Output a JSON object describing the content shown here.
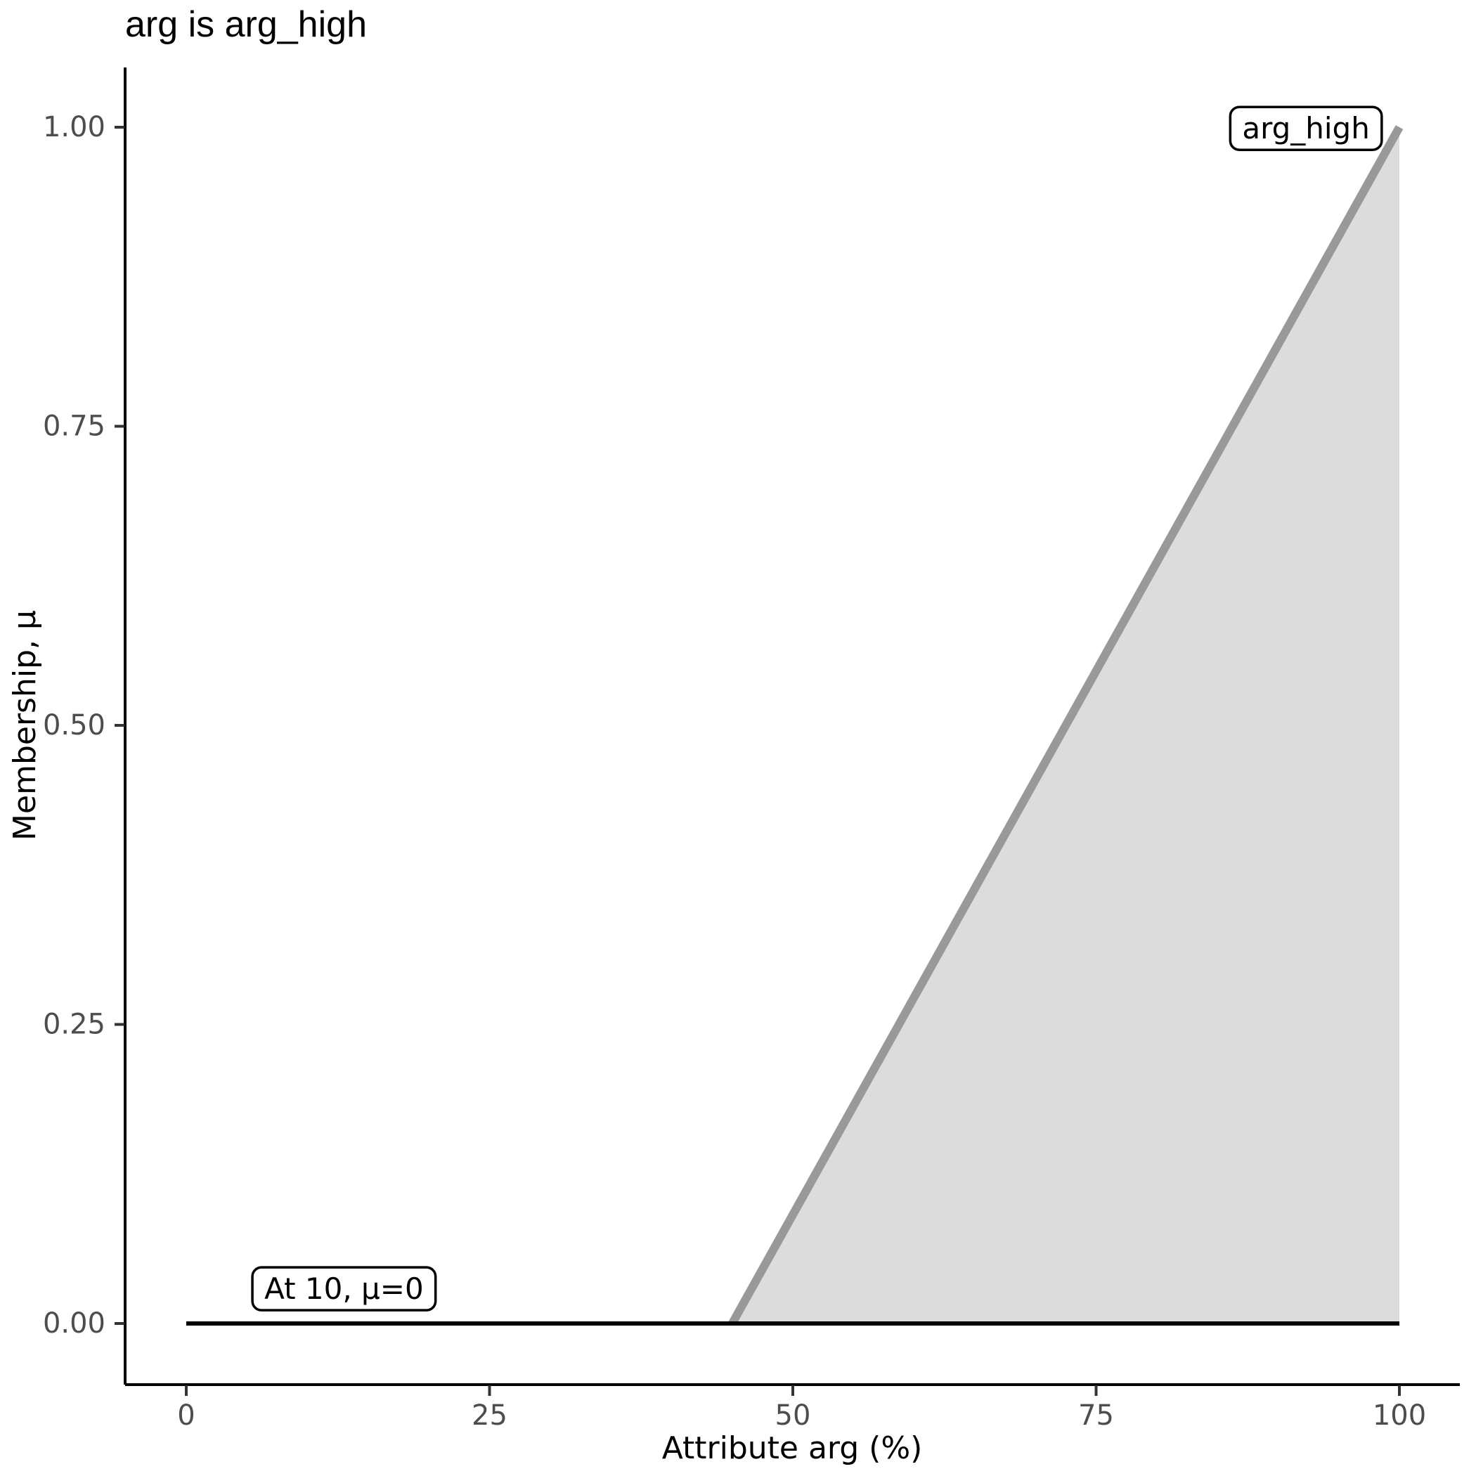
{
  "title": "arg is arg_high",
  "colors": {
    "membership_line": "#999999",
    "membership_fill": "#dcdcdc",
    "zero_line": "#000000",
    "tick_label": "#4d4d4d",
    "axis": "#000000",
    "background": "#ffffff"
  },
  "chart_data": {
    "type": "area",
    "title": "arg is arg_high",
    "xlabel": "Attribute arg (%)",
    "ylabel": "Membership, μ",
    "xlim": [
      0,
      100
    ],
    "ylim": [
      0,
      1
    ],
    "grid": false,
    "legend": false,
    "x_ticks": {
      "values": [
        0,
        25,
        50,
        75,
        100
      ],
      "labels": [
        "0",
        "25",
        "50",
        "75",
        "100"
      ]
    },
    "y_ticks": {
      "values": [
        0,
        0.25,
        0.5,
        0.75,
        1
      ],
      "labels": [
        "0.00",
        "0.25",
        "0.50",
        "0.75",
        "1.00"
      ]
    },
    "series": [
      {
        "name": "arg_high-membership-function",
        "points": [
          [
            45,
            0
          ],
          [
            100,
            1
          ]
        ],
        "style": "thick-gray",
        "fill_to_zero": true
      },
      {
        "name": "evaluated-membership-level",
        "points": [
          [
            0,
            0
          ],
          [
            100,
            0
          ]
        ],
        "style": "black",
        "fill_to_zero": false
      }
    ],
    "annotations": [
      {
        "text": "arg_high",
        "x": 92.3,
        "y": 0.999
      },
      {
        "text": "At 10, μ=0",
        "x": 13.0,
        "y": 0.029
      }
    ]
  }
}
